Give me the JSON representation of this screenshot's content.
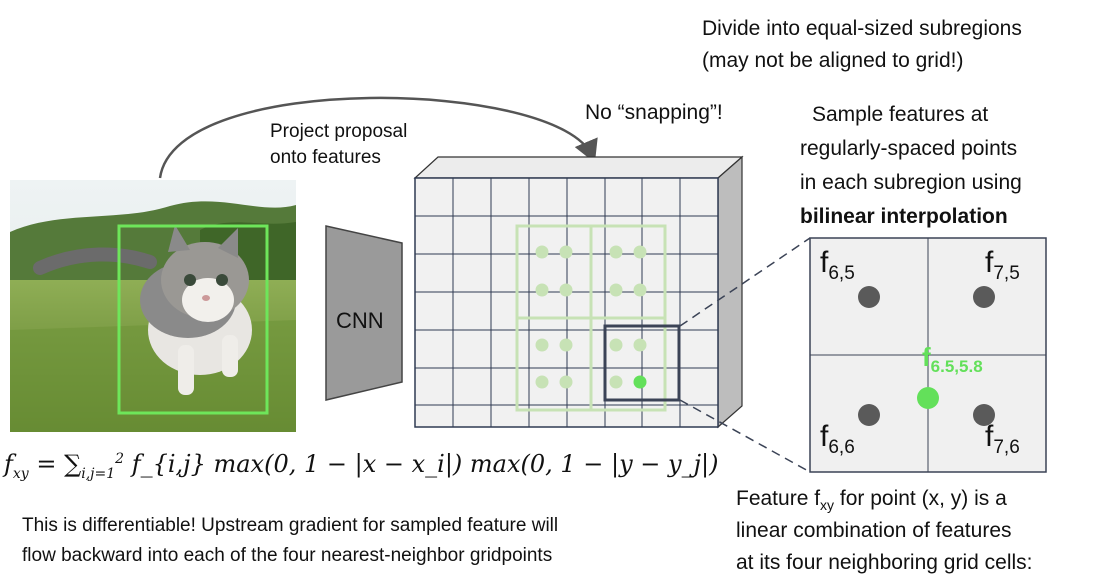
{
  "annotations": {
    "divide_line1": "Divide into equal-sized subregions",
    "divide_line2": "(may not be aligned to grid!)",
    "no_snapping": "No “snapping”!",
    "project_line1": "Project proposal",
    "project_line2": "onto features",
    "sample_line1": "Sample features at",
    "sample_line2": "regularly-spaced points",
    "sample_line3": "in each subregion using",
    "sample_line4_bold": "bilinear interpolation",
    "cnn": "CNN",
    "differentiable_line1": "This is differentiable! Upstream gradient for sampled feature will",
    "differentiable_line2": "flow backward into each of the four nearest-neighbor gridpoints",
    "feature_line1_pre": "Feature f",
    "feature_line1_sub": "xy",
    "feature_line1_post": " for point (x, y) is a",
    "feature_line2": "linear combination of features",
    "feature_line3": "at its four neighboring grid cells:"
  },
  "zoom_labels": {
    "f65": {
      "base": "f",
      "sub": "6,5"
    },
    "f75": {
      "base": "f",
      "sub": "7,5"
    },
    "f66": {
      "base": "f",
      "sub": "6,6"
    },
    "f76": {
      "base": "f",
      "sub": "7,6"
    },
    "fsample": {
      "base": "f",
      "sub": "6.5,5.8"
    }
  },
  "formula": {
    "lhs_base": "f",
    "lhs_sub": "xy",
    "sum_sub": "i,j=1",
    "sum_sup": "2",
    "body": "f_{i,j} max(0, 1 − |x − x_i|) max(0, 1 − |y − y_j|)"
  },
  "colors": {
    "proposal_box": "#6ee65a",
    "subregion_lines": "#c7e2b5",
    "sample_dots": "#c7e2b5",
    "highlight_dot": "#63e05a",
    "selected_cell": "#3b4356",
    "grid_lines": "#2f3a52",
    "neighbor_dots": "#5a5a5a",
    "cnn_fill": "#9a9a9a"
  },
  "icons": {
    "kitten_photo": "kitten-photo",
    "cnn_block": "trapezoid",
    "feature_map": "grid-volume"
  }
}
